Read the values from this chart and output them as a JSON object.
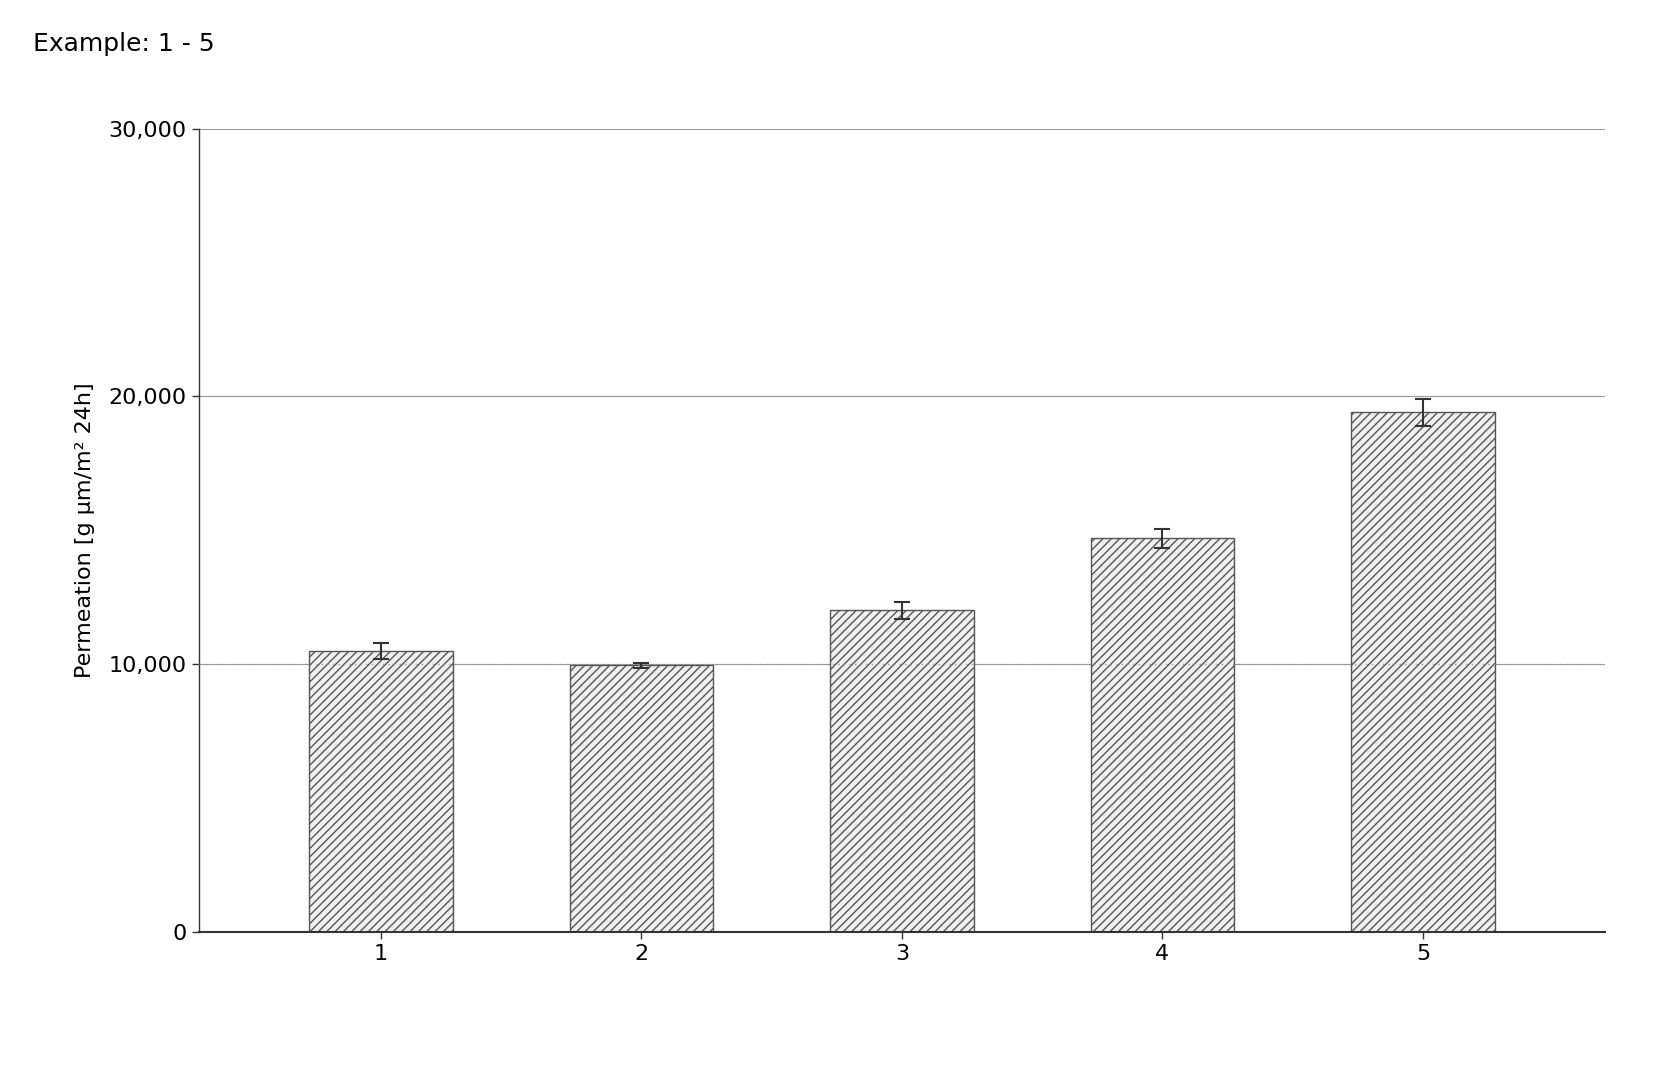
{
  "title": "Example: 1 - 5",
  "categories": [
    "1",
    "2",
    "3",
    "4",
    "5"
  ],
  "values": [
    10500,
    9950,
    12000,
    14700,
    19400
  ],
  "errors": [
    300,
    100,
    300,
    350,
    500
  ],
  "ylabel": "Permeation [g μm/m² 24h]",
  "ylim": [
    0,
    30000
  ],
  "yticks": [
    0,
    10000,
    20000,
    30000
  ],
  "ytick_labels": [
    "0",
    "10,000",
    "20,000",
    "30,000"
  ],
  "hline_y": 10000,
  "hline_color": "#999999",
  "bar_facecolor": "#f0f0f0",
  "bar_edge_color": "#555555",
  "hatch": "////",
  "background_color": "#ffffff",
  "grid_color": "#999999",
  "title_fontsize": 18,
  "axis_label_fontsize": 16,
  "tick_fontsize": 16,
  "bar_width": 0.55
}
